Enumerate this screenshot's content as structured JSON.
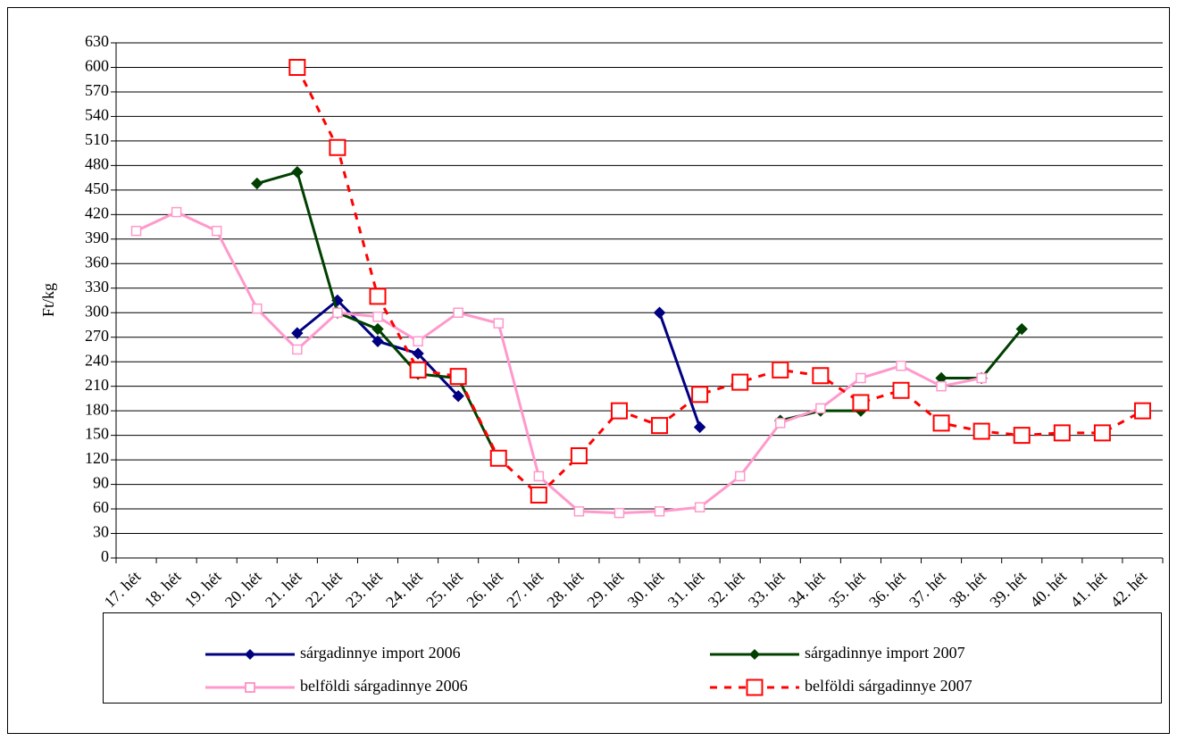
{
  "chart_data": {
    "type": "line",
    "y_label": "Ft/kg",
    "categories": [
      "17. hét",
      "18. hét",
      "19. hét",
      "20. hét",
      "21. hét",
      "22. hét",
      "23. hét",
      "24. hét",
      "25. hét",
      "26. hét",
      "27. hét",
      "28. hét",
      "29. hét",
      "30. hét",
      "31. hét",
      "32. hét",
      "33. hét",
      "34. hét",
      "35. hét",
      "36. hét",
      "37. hét",
      "38. hét",
      "39. hét",
      "40. hét",
      "41. hét",
      "42. hét"
    ],
    "series": [
      {
        "name": "sárgadinnye import 2006",
        "color": "#000080",
        "marker": "diamond",
        "dashed": false,
        "values": [
          null,
          null,
          null,
          null,
          275,
          315,
          265,
          250,
          198,
          null,
          null,
          null,
          null,
          300,
          160,
          null,
          null,
          null,
          null,
          null,
          null,
          null,
          null,
          null,
          null,
          null
        ]
      },
      {
        "name": "sárgadinnye import 2007",
        "color": "#004000",
        "marker": "diamond",
        "dashed": false,
        "values": [
          null,
          null,
          null,
          458,
          472,
          300,
          280,
          225,
          220,
          120,
          null,
          null,
          null,
          null,
          null,
          null,
          168,
          180,
          180,
          null,
          220,
          220,
          280,
          null,
          null,
          null
        ]
      },
      {
        "name": "belföldi sárgadinnye 2006",
        "color": "#ff99cc",
        "marker": "square",
        "dashed": false,
        "values": [
          400,
          423,
          400,
          305,
          255,
          300,
          295,
          265,
          300,
          287,
          100,
          57,
          55,
          57,
          62,
          100,
          165,
          183,
          220,
          235,
          210,
          220,
          null,
          null,
          null,
          null
        ]
      },
      {
        "name": "belföldi sárgadinnye 2007",
        "color": "#ff0000",
        "marker": "bigsquare",
        "dashed": true,
        "values": [
          null,
          null,
          null,
          null,
          600,
          502,
          320,
          230,
          222,
          122,
          77,
          125,
          180,
          162,
          200,
          215,
          230,
          223,
          190,
          205,
          165,
          155,
          150,
          153,
          153,
          180
        ]
      }
    ],
    "ylim": [
      0,
      630
    ],
    "yticks": [
      0,
      30,
      60,
      90,
      120,
      150,
      180,
      210,
      240,
      270,
      300,
      330,
      360,
      390,
      420,
      450,
      480,
      510,
      540,
      570,
      600,
      630
    ],
    "grid": true
  }
}
